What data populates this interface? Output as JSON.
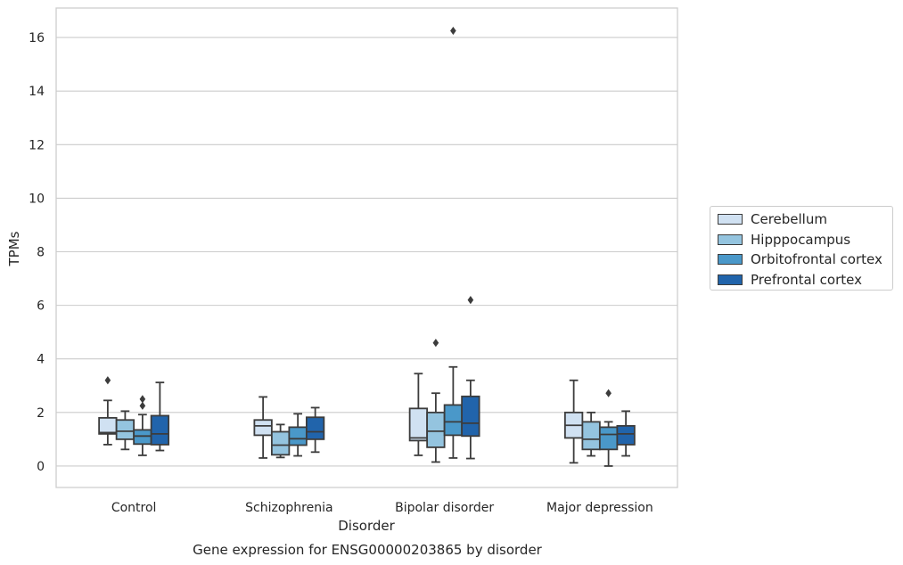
{
  "chart_data": {
    "type": "box",
    "title": "Gene expression for ENSG00000203865 by disorder",
    "xlabel": "Disorder",
    "ylabel": "TPMs",
    "ylim": [
      -0.8,
      17.1
    ],
    "yticks": [
      0,
      2,
      4,
      6,
      8,
      10,
      12,
      14,
      16
    ],
    "grid": "horizontal",
    "legend_placement": "right",
    "categories": [
      "Control",
      "Schizophrenia",
      "Bipolar disorder",
      "Major depression"
    ],
    "series": [
      {
        "name": "Cerebellum",
        "color": "#d0e1f2",
        "boxes": [
          {
            "whislo": 0.8,
            "q1": 1.2,
            "med": 1.25,
            "q3": 1.8,
            "whishi": 2.45,
            "fliers": [
              3.2
            ]
          },
          {
            "whislo": 0.3,
            "q1": 1.15,
            "med": 1.5,
            "q3": 1.72,
            "whishi": 2.58,
            "fliers": []
          },
          {
            "whislo": 0.4,
            "q1": 0.95,
            "med": 1.05,
            "q3": 2.15,
            "whishi": 3.45,
            "fliers": []
          },
          {
            "whislo": 0.12,
            "q1": 1.05,
            "med": 1.52,
            "q3": 2.0,
            "whishi": 3.2,
            "fliers": []
          }
        ]
      },
      {
        "name": "Hipppocampus",
        "color": "#94c4df",
        "boxes": [
          {
            "whislo": 0.62,
            "q1": 1.0,
            "med": 1.3,
            "q3": 1.72,
            "whishi": 2.05,
            "fliers": []
          },
          {
            "whislo": 0.32,
            "q1": 0.42,
            "med": 0.78,
            "q3": 1.28,
            "whishi": 1.55,
            "fliers": []
          },
          {
            "whislo": 0.15,
            "q1": 0.7,
            "med": 1.3,
            "q3": 2.0,
            "whishi": 2.72,
            "fliers": [
              4.6
            ]
          },
          {
            "whislo": 0.38,
            "q1": 0.62,
            "med": 1.0,
            "q3": 1.65,
            "whishi": 2.0,
            "fliers": []
          }
        ]
      },
      {
        "name": "Orbitofrontal cortex",
        "color": "#4a98c9",
        "boxes": [
          {
            "whislo": 0.4,
            "q1": 0.82,
            "med": 1.12,
            "q3": 1.35,
            "whishi": 1.92,
            "fliers": [
              2.25,
              2.5
            ]
          },
          {
            "whislo": 0.38,
            "q1": 0.78,
            "med": 1.02,
            "q3": 1.45,
            "whishi": 1.95,
            "fliers": []
          },
          {
            "whislo": 0.3,
            "q1": 1.15,
            "med": 1.65,
            "q3": 2.28,
            "whishi": 3.7,
            "fliers": [
              16.25
            ]
          },
          {
            "whislo": 0.0,
            "q1": 0.62,
            "med": 1.18,
            "q3": 1.45,
            "whishi": 1.65,
            "fliers": [
              2.72
            ]
          }
        ]
      },
      {
        "name": "Prefrontal cortex",
        "color": "#2164ab",
        "boxes": [
          {
            "whislo": 0.58,
            "q1": 0.8,
            "med": 1.2,
            "q3": 1.88,
            "whishi": 3.12,
            "fliers": []
          },
          {
            "whislo": 0.52,
            "q1": 1.0,
            "med": 1.28,
            "q3": 1.82,
            "whishi": 2.18,
            "fliers": []
          },
          {
            "whislo": 0.28,
            "q1": 1.12,
            "med": 1.6,
            "q3": 2.6,
            "whishi": 3.2,
            "fliers": [
              6.2
            ]
          },
          {
            "whislo": 0.38,
            "q1": 0.8,
            "med": 1.2,
            "q3": 1.5,
            "whishi": 2.05,
            "fliers": []
          }
        ]
      }
    ]
  }
}
